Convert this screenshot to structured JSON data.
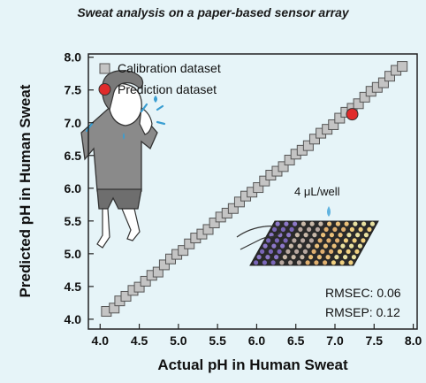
{
  "title": "Sweat analysis on a paper-based sensor array",
  "chart_data": {
    "type": "scatter",
    "xlabel": "Actual pH in Human Sweat",
    "ylabel": "Predicted pH in Human Sweat",
    "xlim": [
      3.85,
      8.05
    ],
    "ylim": [
      3.85,
      8.05
    ],
    "xticks": [
      "4.0",
      "4.5",
      "5.0",
      "5.5",
      "6.0",
      "6.5",
      "7.0",
      "7.5",
      "8.0"
    ],
    "yticks": [
      "4.0",
      "4.5",
      "5.0",
      "5.5",
      "6.0",
      "6.5",
      "7.0",
      "7.5",
      "8.0"
    ],
    "grid": false,
    "legend_position": "top-left",
    "fit_line": {
      "x": [
        4.05,
        7.9
      ],
      "y": [
        4.05,
        7.9
      ]
    },
    "series": [
      {
        "name": "Calibration dataset",
        "marker": "square",
        "color": "#c4c4c4",
        "points": [
          [
            4.08,
            4.12
          ],
          [
            4.18,
            4.17
          ],
          [
            4.25,
            4.28
          ],
          [
            4.33,
            4.35
          ],
          [
            4.42,
            4.44
          ],
          [
            4.5,
            4.49
          ],
          [
            4.58,
            4.58
          ],
          [
            4.66,
            4.67
          ],
          [
            4.74,
            4.72
          ],
          [
            4.82,
            4.83
          ],
          [
            4.9,
            4.92
          ],
          [
            4.98,
            4.99
          ],
          [
            5.06,
            5.05
          ],
          [
            5.14,
            5.15
          ],
          [
            5.22,
            5.24
          ],
          [
            5.3,
            5.3
          ],
          [
            5.38,
            5.37
          ],
          [
            5.46,
            5.47
          ],
          [
            5.54,
            5.56
          ],
          [
            5.62,
            5.62
          ],
          [
            5.7,
            5.69
          ],
          [
            5.78,
            5.79
          ],
          [
            5.86,
            5.88
          ],
          [
            5.94,
            5.94
          ],
          [
            6.02,
            6.01
          ],
          [
            6.1,
            6.11
          ],
          [
            6.18,
            6.2
          ],
          [
            6.26,
            6.26
          ],
          [
            6.34,
            6.33
          ],
          [
            6.42,
            6.43
          ],
          [
            6.5,
            6.52
          ],
          [
            6.58,
            6.58
          ],
          [
            6.66,
            6.65
          ],
          [
            6.74,
            6.75
          ],
          [
            6.82,
            6.84
          ],
          [
            6.9,
            6.9
          ],
          [
            6.98,
            6.97
          ],
          [
            7.06,
            7.07
          ],
          [
            7.14,
            7.16
          ],
          [
            7.22,
            7.22
          ],
          [
            7.3,
            7.29
          ],
          [
            7.38,
            7.39
          ],
          [
            7.46,
            7.48
          ],
          [
            7.54,
            7.54
          ],
          [
            7.62,
            7.61
          ],
          [
            7.7,
            7.71
          ],
          [
            7.78,
            7.8
          ],
          [
            7.86,
            7.86
          ]
        ]
      },
      {
        "name": "Prediction dataset",
        "marker": "circle",
        "color": "#e02b2b",
        "points": [
          [
            7.22,
            7.13
          ]
        ]
      }
    ],
    "annotations": {
      "volume": "4 μL/well",
      "rmsec": "RMSEC: 0.06",
      "rmsep": "RMSEP: 0.12"
    }
  }
}
